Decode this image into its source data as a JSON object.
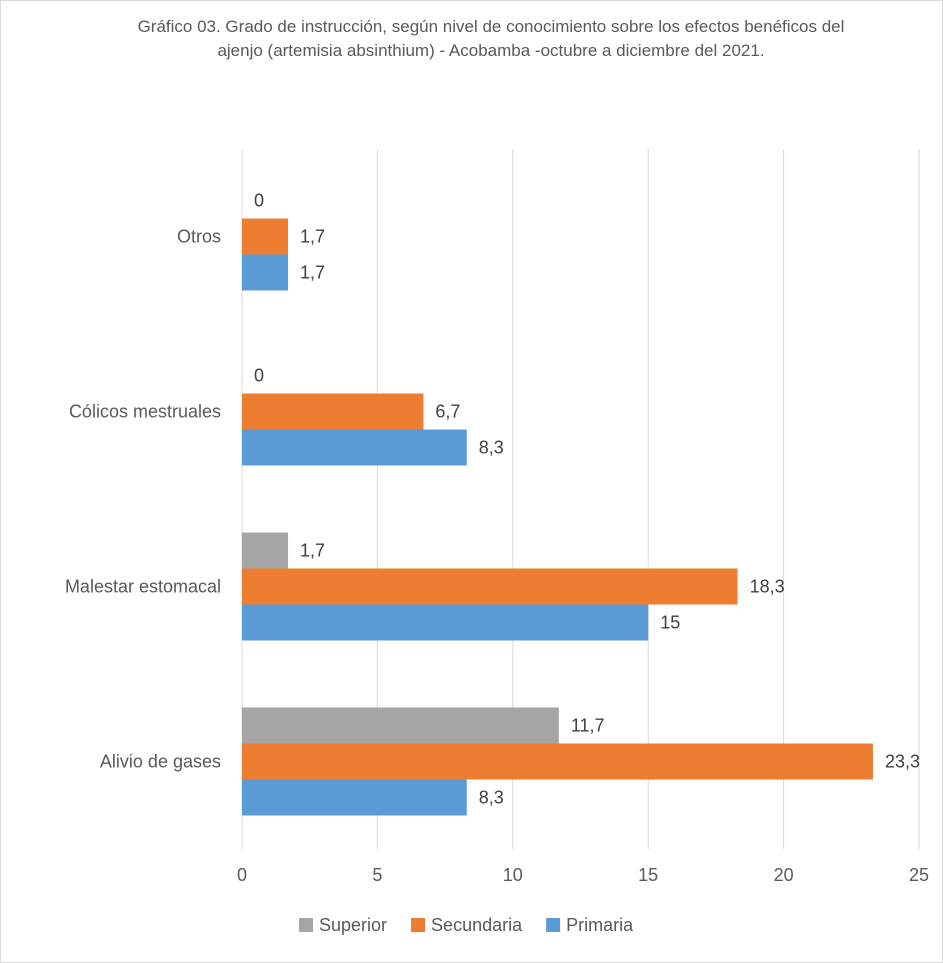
{
  "chart_data": {
    "type": "bar",
    "orientation": "horizontal",
    "title": "Gráfico 03.   Grado de instrucción, según nivel de conocimiento sobre los efectos benéficos del ajenjo (artemisia absinthium)  - Acobamba -octubre a diciembre del 2021.",
    "xlabel": "",
    "ylabel": "",
    "xlim": [
      0,
      25
    ],
    "x_ticks": [
      "0",
      "5",
      "10",
      "15",
      "20",
      "25"
    ],
    "grid": true,
    "legend_position": "bottom",
    "categories": [
      "Otros",
      "Cólicos mestruales",
      "Malestar estomacal",
      "Alivio de gases"
    ],
    "series": [
      {
        "name": "Superior",
        "color": "#a5a5a5",
        "values": [
          0,
          0,
          1.7,
          11.7
        ],
        "labels": [
          "0",
          "0",
          "1,7",
          "11,7"
        ]
      },
      {
        "name": "Secundaria",
        "color": "#ed7d31",
        "values": [
          1.7,
          6.7,
          18.3,
          23.3
        ],
        "labels": [
          "1,7",
          "6,7",
          "18,3",
          "23,3"
        ]
      },
      {
        "name": "Primaria",
        "color": "#5b9bd5",
        "values": [
          1.7,
          8.3,
          15,
          8.3
        ],
        "labels": [
          "1,7",
          "8,3",
          "15",
          "8,3"
        ]
      }
    ]
  }
}
